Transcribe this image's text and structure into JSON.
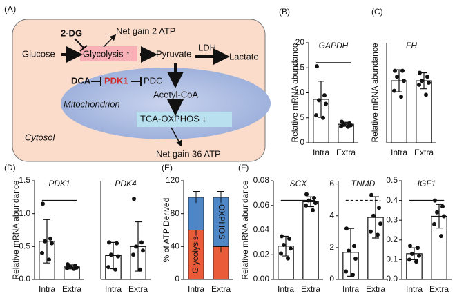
{
  "diagram": {
    "label": "(A)",
    "inhibitor1": "2-DG",
    "gain1": "Net gain 2 ATP",
    "glucose": "Glucose",
    "glycolysis": "Glycolysis ↑",
    "pyruvate": "Pyruvate",
    "ldh": "LDH",
    "lactate": "Lactate",
    "inhibitor2": "DCA",
    "pdk1": "PDK1",
    "pdc": "PDC",
    "acetyl": "Acetyl-CoA",
    "mito": "Mitochondrion",
    "tca": "TCA-OXPHOS ↓",
    "cytosol": "Cytosol",
    "gain2": "Net gain 36 ATP"
  },
  "chart_data": [
    {
      "type": "bar",
      "panel": "(B)",
      "title": "GAPDH",
      "ylabel": "Relative mRNA abundance",
      "categories": [
        "Intra",
        "Extra"
      ],
      "values": [
        8.7,
        3.7
      ],
      "errors": [
        3.6,
        0.4
      ],
      "points": [
        [
          15.3,
          9.5,
          8.5,
          7.8,
          5.5,
          5.0
        ],
        [
          4.2,
          3.9,
          3.6,
          3.5,
          3.3,
          3.2
        ]
      ],
      "color": "#ffffff",
      "ylim": [
        0,
        20
      ],
      "yticks": [
        0,
        5,
        10,
        15,
        20
      ],
      "significance": "solid"
    },
    {
      "type": "bar",
      "panel": "(C)",
      "title": "FH",
      "ylabel": "Relative mRNA abundance",
      "categories": [
        "Intra",
        "Extra"
      ],
      "values": [
        0.31,
        0.31
      ],
      "errors": [
        0.055,
        0.04
      ],
      "points": [
        [
          0.36,
          0.36,
          0.33,
          0.31,
          0.26,
          0.23
        ],
        [
          0.35,
          0.33,
          0.31,
          0.3,
          0.29,
          0.24
        ]
      ],
      "color": "#ffffff",
      "ylim": [
        0,
        0.5
      ]
    },
    {
      "type": "bar",
      "panel": "(D)",
      "title": "PDK1",
      "ylabel": "Relative mRNA abundance",
      "categories": [
        "Intra",
        "Extra"
      ],
      "values": [
        0.58,
        0.19
      ],
      "errors": [
        0.33,
        0.03
      ],
      "points": [
        [
          1.15,
          0.62,
          0.58,
          0.55,
          0.4,
          0.3
        ],
        [
          0.23,
          0.21,
          0.19,
          0.18,
          0.17,
          0.16
        ]
      ],
      "color": "#ffffff",
      "ylim": [
        0,
        1.5
      ],
      "yticks": [
        {
          "value": 0,
          "label": "0.0"
        },
        {
          "value": 0.5,
          "label": "0.5"
        },
        {
          "value": 1,
          "label": "1.0"
        },
        {
          "value": 1.5,
          "label": "1.5"
        }
      ],
      "significance": "solid"
    },
    {
      "type": "bar",
      "title": "PDK4",
      "categories": [
        "Intra",
        "Extra"
      ],
      "values": [
        0.29,
        0.4
      ],
      "errors": [
        0.16,
        0.3
      ],
      "points": [
        [
          0.45,
          0.44,
          0.3,
          0.28,
          0.15,
          0.12
        ],
        [
          0.98,
          0.45,
          0.4,
          0.35,
          0.3,
          0.12
        ]
      ],
      "color": "#ffffff",
      "ylim": [
        0,
        1.2
      ]
    },
    {
      "type": "stacked_bar",
      "panel": "(E)",
      "ylabel": "% of ATP Derived",
      "categories": [
        "Intra",
        "Extra"
      ],
      "series": [
        {
          "name": "Glycolysis",
          "color": "#ea5b3a",
          "values": [
            60,
            40
          ],
          "errors": [
            7,
            7
          ]
        },
        {
          "name": "OXPHOS",
          "color": "#4e86c6",
          "values": [
            40,
            60
          ],
          "errors": [
            7,
            7
          ]
        }
      ],
      "ylim": [
        0,
        120
      ],
      "yticks": [
        0,
        40,
        80,
        120
      ]
    },
    {
      "type": "bar",
      "panel": "(F)",
      "title": "SCX",
      "ylabel": "Relative mRNA abundance",
      "categories": [
        "Intra",
        "Extra"
      ],
      "values": [
        0.027,
        0.063
      ],
      "errors": [
        0.008,
        0.004
      ],
      "points": [
        [
          0.035,
          0.033,
          0.028,
          0.025,
          0.021,
          0.017
        ],
        [
          0.069,
          0.066,
          0.064,
          0.062,
          0.06,
          0.056
        ]
      ],
      "color": "#ffffff",
      "ylim": [
        0,
        0.08
      ],
      "yticks": [
        {
          "value": 0,
          "label": "0.00"
        },
        {
          "value": 0.02,
          "label": "0.02"
        },
        {
          "value": 0.04,
          "label": "0.04"
        },
        {
          "value": 0.06,
          "label": "0.06"
        },
        {
          "value": 0.08,
          "label": "0.08"
        }
      ],
      "significance": "solid"
    },
    {
      "type": "bar",
      "title": "TNMD",
      "categories": [
        "Intra",
        "Extra"
      ],
      "values": [
        1.7,
        3.9
      ],
      "errors": [
        1.5,
        1.3
      ],
      "points": [
        [
          3.2,
          2.1,
          1.8,
          1.3,
          0.5,
          0.3
        ],
        [
          5.3,
          4.5,
          4.0,
          3.5,
          3.0,
          2.8
        ]
      ],
      "color": "#ffffff",
      "ylim": [
        0,
        6.2
      ],
      "yticks": [
        0,
        2,
        4,
        6
      ],
      "significance": "dashed"
    },
    {
      "type": "bar",
      "title": "IGF1",
      "categories": [
        "Intra",
        "Extra"
      ],
      "values": [
        0.13,
        0.32
      ],
      "errors": [
        0.03,
        0.06
      ],
      "points": [
        [
          0.17,
          0.16,
          0.13,
          0.12,
          0.1,
          0.09
        ],
        [
          0.4,
          0.37,
          0.34,
          0.32,
          0.28,
          0.22
        ]
      ],
      "color": "#ffffff",
      "ylim": [
        0,
        0.5
      ],
      "yticks": [
        {
          "value": 0,
          "label": "0.0"
        },
        {
          "value": 0.1,
          "label": "0.1"
        },
        {
          "value": 0.2,
          "label": "0.2"
        },
        {
          "value": 0.3,
          "label": "0.3"
        },
        {
          "value": 0.4,
          "label": "0.4"
        },
        {
          "value": 0.5,
          "label": "0.5"
        }
      ],
      "significance": "solid"
    }
  ]
}
